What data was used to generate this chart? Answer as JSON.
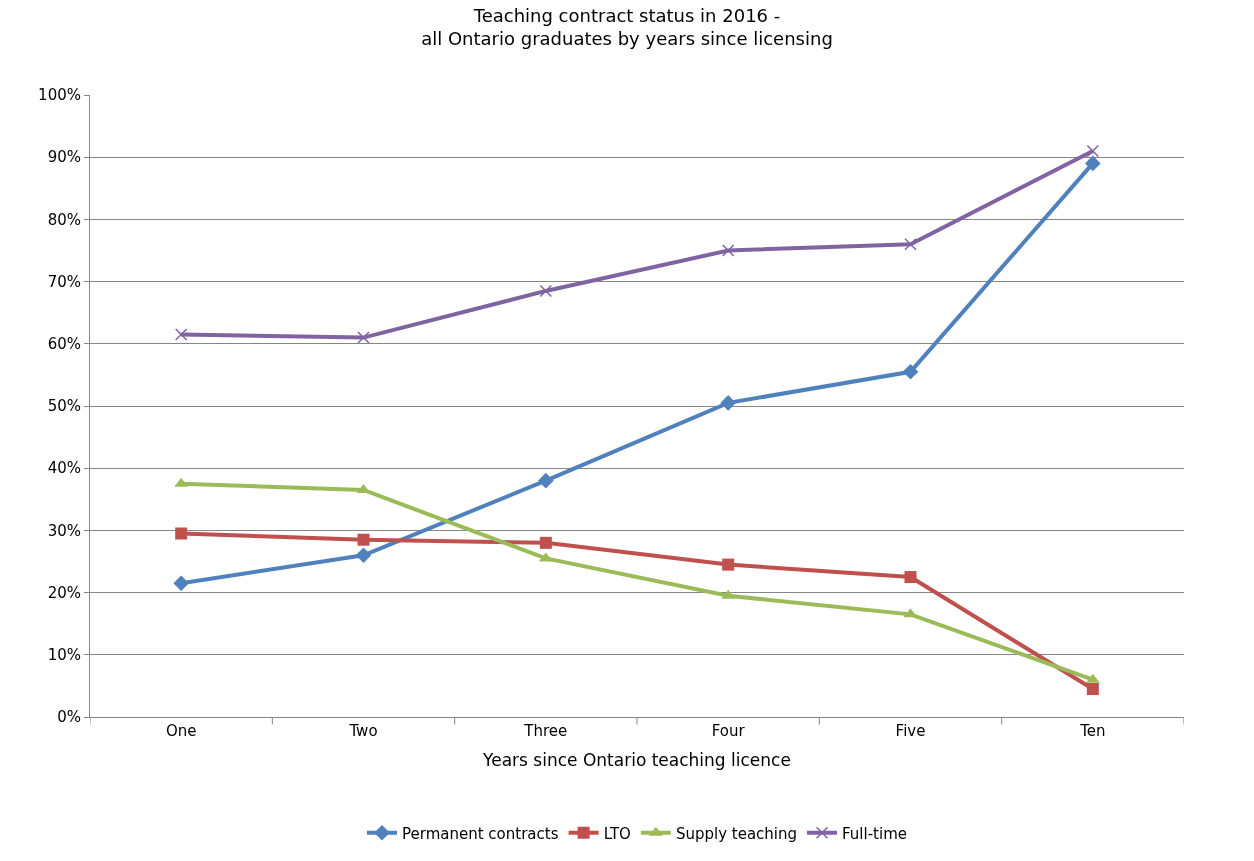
{
  "chart_data": {
    "type": "line",
    "title": "Teaching contract status in 2016 -\nall Ontario graduates by years since licensing",
    "xlabel": "Years since Ontario teaching licence",
    "categories": [
      "One",
      "Two",
      "Three",
      "Four",
      "Five",
      "Ten"
    ],
    "series": [
      {
        "name": "Permanent contracts",
        "color": "#4f81bd",
        "marker": "diamond",
        "values": [
          21.5,
          26,
          38,
          50.5,
          55.5,
          89
        ]
      },
      {
        "name": "LTO",
        "color": "#c0504d",
        "marker": "square",
        "values": [
          29.5,
          28.5,
          28,
          24.5,
          22.5,
          4.5
        ]
      },
      {
        "name": "Supply teaching",
        "color": "#9bbb59",
        "marker": "triangle",
        "values": [
          37.5,
          36.5,
          25.5,
          19.5,
          16.5,
          6
        ]
      },
      {
        "name": "Full-time",
        "color": "#8064a2",
        "marker": "cross",
        "values": [
          61.5,
          61,
          68.5,
          75,
          76,
          91
        ]
      }
    ],
    "ylim": [
      0,
      100
    ],
    "yticks": [
      {
        "value": 0,
        "label": "0%"
      },
      {
        "value": 10,
        "label": "10%"
      },
      {
        "value": 20,
        "label": "20%"
      },
      {
        "value": 30,
        "label": "30%"
      },
      {
        "value": 40,
        "label": "40%"
      },
      {
        "value": 50,
        "label": "50%"
      },
      {
        "value": 60,
        "label": "60%"
      },
      {
        "value": 70,
        "label": "70%"
      },
      {
        "value": 80,
        "label": "80%"
      },
      {
        "value": 90,
        "label": "90%"
      },
      {
        "value": 100,
        "label": "100%"
      }
    ],
    "grid": "y",
    "legend": "bottom",
    "line_style": "solid"
  }
}
